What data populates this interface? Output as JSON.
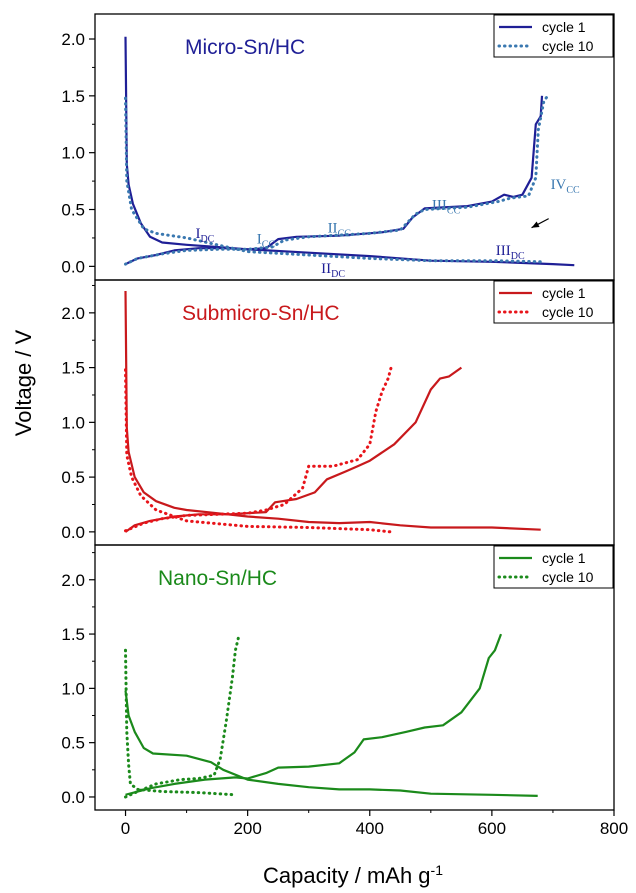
{
  "chart_data": {
    "type": "line",
    "xlabel": "Capacity / mAh g",
    "xlabel_sup": "-1",
    "ylabel": "Voltage / V",
    "xlim": [
      -50,
      800
    ],
    "x_ticks": [
      "0",
      "200",
      "400",
      "600",
      "800"
    ],
    "y_ticks": [
      "0.0",
      "0.5",
      "1.0",
      "1.5",
      "2.0"
    ],
    "panels": [
      {
        "title": "Micro-Sn/HC",
        "color": "#1f1f96",
        "color2": "#3a78b0",
        "ylim": [
          -0.12,
          2.22
        ],
        "legend": [
          "cycle 1",
          "cycle 10"
        ],
        "series": [
          {
            "name": "cycle 1",
            "style": "solid",
            "segments": [
              [
                [
                  0,
                  2.02
                ],
                [
                  2,
                  0.9
                ],
                [
                  5,
                  0.72
                ],
                [
                  12,
                  0.55
                ],
                [
                  25,
                  0.38
                ],
                [
                  40,
                  0.26
                ],
                [
                  60,
                  0.21
                ],
                [
                  100,
                  0.19
                ],
                [
                  150,
                  0.17
                ],
                [
                  200,
                  0.15
                ],
                [
                  300,
                  0.12
                ],
                [
                  400,
                  0.09
                ],
                [
                  500,
                  0.05
                ],
                [
                  600,
                  0.04
                ],
                [
                  700,
                  0.02
                ],
                [
                  735,
                  0.01
                ]
              ],
              [
                [
                  0,
                  0.02
                ],
                [
                  20,
                  0.07
                ],
                [
                  50,
                  0.1
                ],
                [
                  80,
                  0.14
                ],
                [
                  120,
                  0.16
                ],
                [
                  160,
                  0.16
                ],
                [
                  200,
                  0.15
                ],
                [
                  230,
                  0.16
                ],
                [
                  250,
                  0.24
                ],
                [
                  280,
                  0.26
                ],
                [
                  350,
                  0.27
                ],
                [
                  420,
                  0.3
                ],
                [
                  455,
                  0.33
                ],
                [
                  470,
                  0.43
                ],
                [
                  490,
                  0.51
                ],
                [
                  560,
                  0.53
                ],
                [
                  600,
                  0.57
                ],
                [
                  620,
                  0.63
                ],
                [
                  635,
                  0.61
                ],
                [
                  650,
                  0.63
                ],
                [
                  665,
                  0.78
                ],
                [
                  672,
                  1.25
                ],
                [
                  680,
                  1.32
                ],
                [
                  682,
                  1.5
                ]
              ]
            ]
          },
          {
            "name": "cycle 10",
            "style": "dotted",
            "segments": [
              [
                [
                  0,
                  1.48
                ],
                [
                  2,
                  0.75
                ],
                [
                  10,
                  0.5
                ],
                [
                  30,
                  0.33
                ],
                [
                  50,
                  0.29
                ],
                [
                  100,
                  0.25
                ],
                [
                  150,
                  0.19
                ],
                [
                  200,
                  0.13
                ],
                [
                  300,
                  0.1
                ],
                [
                  400,
                  0.07
                ],
                [
                  500,
                  0.05
                ],
                [
                  600,
                  0.05
                ],
                [
                  680,
                  0.04
                ]
              ],
              [
                [
                  0,
                  0.02
                ],
                [
                  20,
                  0.07
                ],
                [
                  60,
                  0.11
                ],
                [
                  100,
                  0.14
                ],
                [
                  150,
                  0.15
                ],
                [
                  200,
                  0.15
                ],
                [
                  240,
                  0.17
                ],
                [
                  260,
                  0.23
                ],
                [
                  300,
                  0.26
                ],
                [
                  400,
                  0.29
                ],
                [
                  450,
                  0.32
                ],
                [
                  475,
                  0.46
                ],
                [
                  490,
                  0.5
                ],
                [
                  560,
                  0.52
                ],
                [
                  610,
                  0.57
                ],
                [
                  630,
                  0.6
                ],
                [
                  660,
                  0.62
                ],
                [
                  672,
                  0.78
                ],
                [
                  676,
                  1.2
                ],
                [
                  685,
                  1.45
                ],
                [
                  690,
                  1.49
                ]
              ]
            ]
          }
        ],
        "annotations": [
          {
            "main": "I",
            "sub": "DC",
            "x": 130,
            "y": 0.25
          },
          {
            "main": "I",
            "sub": "CC",
            "x": 230,
            "y": 0.2
          },
          {
            "main": "II",
            "sub": "CC",
            "x": 350,
            "y": 0.3
          },
          {
            "main": "III",
            "sub": "CC",
            "x": 525,
            "y": 0.5
          },
          {
            "main": "IV",
            "sub": "CC",
            "x": 720,
            "y": 0.68
          },
          {
            "main": "III",
            "sub": "DC",
            "x": 630,
            "y": 0.1
          },
          {
            "main": "II",
            "sub": "DC",
            "x": 340,
            "y": -0.06
          }
        ],
        "arrow": {
          "from": [
            693,
            0.42
          ],
          "to": [
            665,
            0.34
          ]
        }
      },
      {
        "title": "Submicro-Sn/HC",
        "color": "#c8191c",
        "color2": "#e8141a",
        "ylim": [
          -0.12,
          2.3
        ],
        "legend": [
          "cycle 1",
          "cycle 10"
        ],
        "series": [
          {
            "name": "cycle 1",
            "style": "solid",
            "segments": [
              [
                [
                  0,
                  2.2
                ],
                [
                  2,
                  0.95
                ],
                [
                  5,
                  0.73
                ],
                [
                  15,
                  0.5
                ],
                [
                  30,
                  0.36
                ],
                [
                  50,
                  0.28
                ],
                [
                  80,
                  0.22
                ],
                [
                  100,
                  0.2
                ],
                [
                  150,
                  0.17
                ],
                [
                  200,
                  0.14
                ],
                [
                  250,
                  0.12
                ],
                [
                  300,
                  0.09
                ],
                [
                  350,
                  0.08
                ],
                [
                  400,
                  0.09
                ],
                [
                  450,
                  0.06
                ],
                [
                  500,
                  0.04
                ],
                [
                  600,
                  0.04
                ],
                [
                  680,
                  0.02
                ]
              ],
              [
                [
                  0,
                  0.0
                ],
                [
                  15,
                  0.06
                ],
                [
                  40,
                  0.1
                ],
                [
                  80,
                  0.14
                ],
                [
                  120,
                  0.16
                ],
                [
                  170,
                  0.16
                ],
                [
                  230,
                  0.18
                ],
                [
                  245,
                  0.27
                ],
                [
                  280,
                  0.3
                ],
                [
                  310,
                  0.36
                ],
                [
                  330,
                  0.48
                ],
                [
                  360,
                  0.55
                ],
                [
                  380,
                  0.6
                ],
                [
                  400,
                  0.65
                ],
                [
                  440,
                  0.8
                ],
                [
                  475,
                  1.0
                ],
                [
                  500,
                  1.3
                ],
                [
                  515,
                  1.4
                ],
                [
                  530,
                  1.42
                ],
                [
                  550,
                  1.5
                ]
              ]
            ]
          },
          {
            "name": "cycle 10",
            "style": "dotted",
            "segments": [
              [
                [
                  0,
                  1.48
                ],
                [
                  2,
                  0.7
                ],
                [
                  10,
                  0.5
                ],
                [
                  25,
                  0.33
                ],
                [
                  50,
                  0.2
                ],
                [
                  100,
                  0.1
                ],
                [
                  200,
                  0.05
                ],
                [
                  300,
                  0.04
                ],
                [
                  400,
                  0.02
                ],
                [
                  435,
                  0.0
                ]
              ],
              [
                [
                  0,
                  0.01
                ],
                [
                  30,
                  0.08
                ],
                [
                  60,
                  0.12
                ],
                [
                  100,
                  0.15
                ],
                [
                  150,
                  0.16
                ],
                [
                  200,
                  0.17
                ],
                [
                  230,
                  0.2
                ],
                [
                  260,
                  0.25
                ],
                [
                  290,
                  0.4
                ],
                [
                  300,
                  0.6
                ],
                [
                  340,
                  0.6
                ],
                [
                  380,
                  0.66
                ],
                [
                  400,
                  0.8
                ],
                [
                  410,
                  1.1
                ],
                [
                  420,
                  1.28
                ],
                [
                  430,
                  1.4
                ],
                [
                  435,
                  1.5
                ]
              ]
            ]
          }
        ]
      },
      {
        "title": "Nano-Sn/HC",
        "color": "#1b8a1b",
        "color2": "#1b8a1b",
        "ylim": [
          -0.12,
          2.32
        ],
        "legend": [
          "cycle 1",
          "cycle 10"
        ],
        "series": [
          {
            "name": "cycle 1",
            "style": "solid",
            "segments": [
              [
                [
                  0,
                  0.98
                ],
                [
                  5,
                  0.75
                ],
                [
                  15,
                  0.6
                ],
                [
                  30,
                  0.45
                ],
                [
                  45,
                  0.4
                ],
                [
                  100,
                  0.38
                ],
                [
                  140,
                  0.32
                ],
                [
                  160,
                  0.25
                ],
                [
                  200,
                  0.16
                ],
                [
                  250,
                  0.12
                ],
                [
                  300,
                  0.09
                ],
                [
                  350,
                  0.07
                ],
                [
                  400,
                  0.07
                ],
                [
                  450,
                  0.06
                ],
                [
                  500,
                  0.03
                ],
                [
                  600,
                  0.02
                ],
                [
                  675,
                  0.01
                ]
              ],
              [
                [
                  0,
                  0.02
                ],
                [
                  40,
                  0.08
                ],
                [
                  80,
                  0.12
                ],
                [
                  130,
                  0.16
                ],
                [
                  180,
                  0.18
                ],
                [
                  200,
                  0.17
                ],
                [
                  230,
                  0.22
                ],
                [
                  250,
                  0.27
                ],
                [
                  300,
                  0.28
                ],
                [
                  350,
                  0.31
                ],
                [
                  375,
                  0.41
                ],
                [
                  390,
                  0.53
                ],
                [
                  420,
                  0.55
                ],
                [
                  460,
                  0.6
                ],
                [
                  490,
                  0.64
                ],
                [
                  520,
                  0.66
                ],
                [
                  550,
                  0.78
                ],
                [
                  580,
                  1.0
                ],
                [
                  595,
                  1.28
                ],
                [
                  605,
                  1.35
                ],
                [
                  615,
                  1.5
                ]
              ]
            ]
          },
          {
            "name": "cycle 10",
            "style": "dotted",
            "segments": [
              [
                [
                  0,
                  1.35
                ],
                [
                  2,
                  0.6
                ],
                [
                  5,
                  0.3
                ],
                [
                  8,
                  0.12
                ],
                [
                  20,
                  0.07
                ],
                [
                  60,
                  0.05
                ],
                [
                  120,
                  0.04
                ],
                [
                  180,
                  0.02
                ]
              ],
              [
                [
                  0,
                  0.0
                ],
                [
                  20,
                  0.05
                ],
                [
                  50,
                  0.12
                ],
                [
                  90,
                  0.16
                ],
                [
                  120,
                  0.17
                ],
                [
                  145,
                  0.2
                ],
                [
                  155,
                  0.35
                ],
                [
                  165,
                  0.7
                ],
                [
                  175,
                  1.1
                ],
                [
                  180,
                  1.35
                ],
                [
                  185,
                  1.47
                ]
              ]
            ]
          }
        ]
      }
    ]
  }
}
